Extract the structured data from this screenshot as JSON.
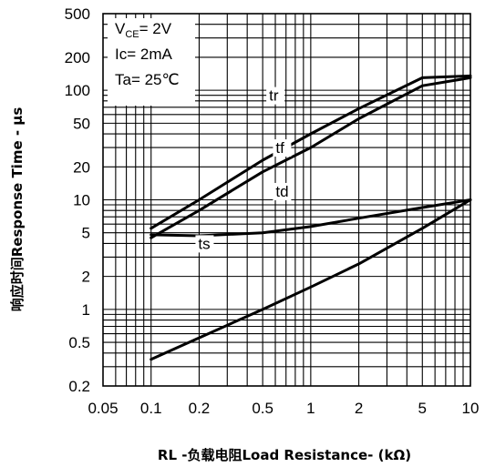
{
  "chart_data": {
    "type": "line",
    "xscale": "log",
    "yscale": "log",
    "xlim": [
      0.05,
      10
    ],
    "ylim": [
      0.2,
      500
    ],
    "grid": true,
    "xticks": [
      {
        "value": 0.05,
        "label": "0.05"
      },
      {
        "value": 0.1,
        "label": "0.1"
      },
      {
        "value": 0.2,
        "label": "0.2"
      },
      {
        "value": 0.5,
        "label": "0.5"
      },
      {
        "value": 1,
        "label": "1"
      },
      {
        "value": 2,
        "label": "2"
      },
      {
        "value": 5,
        "label": "5"
      },
      {
        "value": 10,
        "label": "10"
      }
    ],
    "yticks": [
      {
        "value": 500,
        "label": "500"
      },
      {
        "value": 200,
        "label": "200"
      },
      {
        "value": 100,
        "label": "100"
      },
      {
        "value": 50,
        "label": "50"
      },
      {
        "value": 20,
        "label": "20"
      },
      {
        "value": 10,
        "label": "10"
      },
      {
        "value": 5,
        "label": "5"
      },
      {
        "value": 2,
        "label": "2"
      },
      {
        "value": 1,
        "label": "1"
      },
      {
        "value": 0.5,
        "label": "0.5"
      },
      {
        "value": 0.2,
        "label": "0.2"
      }
    ],
    "xlabel": "RL -负载电阻Load Resistance- (kΩ)",
    "ylabel": "响应时间Response Time - μs",
    "conditions": {
      "vce_main": "V",
      "vce_sub": "CE",
      "vce_value": "= 2V",
      "ic": "Ic= 2mA",
      "ta": "Ta= 25℃"
    },
    "series": [
      {
        "name": "tr",
        "x": [
          0.1,
          0.2,
          0.5,
          1,
          2,
          5,
          10
        ],
        "y": [
          5.5,
          10,
          23,
          40,
          68,
          130,
          135
        ]
      },
      {
        "name": "tf",
        "x": [
          0.1,
          0.2,
          0.5,
          1,
          2,
          5,
          10
        ],
        "y": [
          4.5,
          8,
          18,
          30,
          55,
          110,
          130
        ]
      },
      {
        "name": "td",
        "x": [
          0.1,
          0.2,
          0.5,
          1,
          2,
          5,
          10
        ],
        "y": [
          4.8,
          4.7,
          5.0,
          5.7,
          6.8,
          8.5,
          10
        ]
      },
      {
        "name": "ts",
        "x": [
          0.1,
          0.2,
          0.5,
          1,
          2,
          5,
          10
        ],
        "y": [
          0.35,
          0.55,
          1.0,
          1.6,
          2.6,
          5.5,
          10
        ]
      }
    ]
  }
}
